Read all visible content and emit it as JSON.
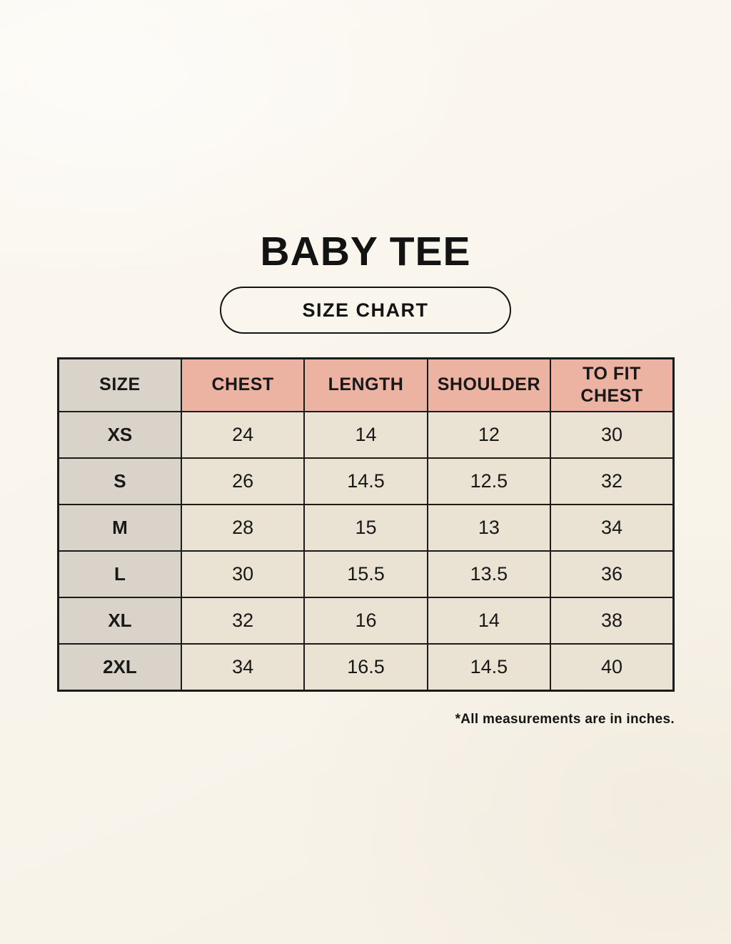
{
  "page": {
    "title": "BABY TEE",
    "size_chart_label": "SIZE CHART",
    "footnote": "*All measurements are in inches."
  },
  "chart_data": {
    "type": "table",
    "title": "BABY TEE",
    "columns": [
      "SIZE",
      "CHEST",
      "LENGTH",
      "SHOULDER",
      "TO FIT CHEST"
    ],
    "rows": [
      [
        "XS",
        "24",
        "14",
        "12",
        "30"
      ],
      [
        "S",
        "26",
        "14.5",
        "12.5",
        "32"
      ],
      [
        "M",
        "28",
        "15",
        "13",
        "34"
      ],
      [
        "L",
        "30",
        "15.5",
        "13.5",
        "36"
      ],
      [
        "XL",
        "32",
        "16",
        "14",
        "38"
      ],
      [
        "2XL",
        "34",
        "16.5",
        "14.5",
        "40"
      ]
    ],
    "units": "inches"
  },
  "colors": {
    "background": "#f9f5ec",
    "header_pink": "#ecb2a2",
    "size_column_gray": "#d9d3ca",
    "cell_cream": "#eae3d4",
    "border": "#1b1b1b",
    "text": "#131313"
  }
}
